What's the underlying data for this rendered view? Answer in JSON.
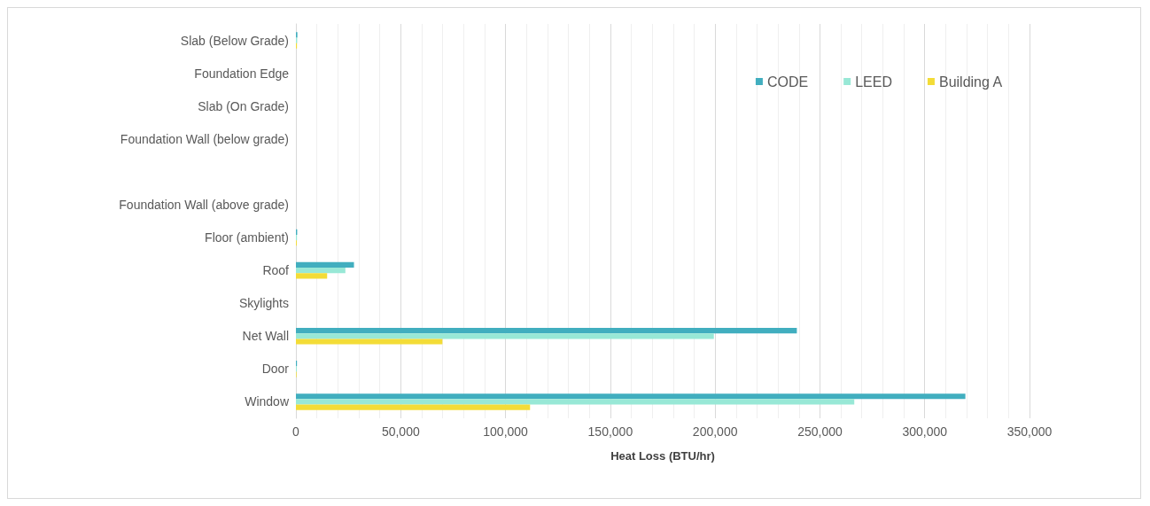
{
  "chart_data": {
    "type": "bar",
    "orientation": "horizontal",
    "xlabel": "Heat Loss (BTU/hr)",
    "categories": [
      "Slab (Below Grade)",
      "Foundation Edge",
      "Slab (On Grade)",
      "Foundation Wall (below grade)",
      null,
      "Foundation Wall (above grade)",
      "Floor (ambient)",
      "Roof",
      "Skylights",
      "Net Wall",
      "Door",
      "Window"
    ],
    "series": [
      {
        "name": "CODE",
        "color": "#41aebf",
        "values": [
          700,
          0,
          0,
          0,
          0,
          0,
          600,
          27700,
          0,
          239000,
          500,
          319400
        ]
      },
      {
        "name": "LEED",
        "color": "#98e8d6",
        "values": [
          600,
          0,
          0,
          0,
          0,
          0,
          500,
          23600,
          0,
          199400,
          400,
          266400
        ]
      },
      {
        "name": "Building A",
        "color": "#f3dc37",
        "values": [
          500,
          0,
          0,
          0,
          0,
          0,
          400,
          14900,
          0,
          69900,
          300,
          111700
        ]
      }
    ],
    "xlim": [
      0,
      350000
    ],
    "xticks": [
      0,
      {
        "value": 10000,
        "label": null
      },
      {
        "value": 20000,
        "label": null
      },
      {
        "value": 30000,
        "label": null
      },
      {
        "value": 40000,
        "label": null
      },
      {
        "value": 50000,
        "label": "50,000"
      },
      {
        "value": 60000,
        "label": null
      },
      {
        "value": 70000,
        "label": null
      },
      {
        "value": 80000,
        "label": null
      },
      {
        "value": 90000,
        "label": null
      },
      {
        "value": 100000,
        "label": "100,000"
      },
      {
        "value": 110000,
        "label": null
      },
      {
        "value": 120000,
        "label": null
      },
      {
        "value": 130000,
        "label": null
      },
      {
        "value": 140000,
        "label": null
      },
      {
        "value": 150000,
        "label": "150,000"
      },
      {
        "value": 160000,
        "label": null
      },
      {
        "value": 170000,
        "label": null
      },
      {
        "value": 180000,
        "label": null
      },
      {
        "value": 190000,
        "label": null
      },
      {
        "value": 200000,
        "label": "200,000"
      },
      {
        "value": 210000,
        "label": null
      },
      {
        "value": 220000,
        "label": null
      },
      {
        "value": 230000,
        "label": null
      },
      {
        "value": 240000,
        "label": null
      },
      {
        "value": 250000,
        "label": "250,000"
      },
      {
        "value": 260000,
        "label": null
      },
      {
        "value": 270000,
        "label": null
      },
      {
        "value": 280000,
        "label": null
      },
      {
        "value": 290000,
        "label": null
      },
      {
        "value": 300000,
        "label": "300,000"
      },
      {
        "value": 310000,
        "label": null
      },
      {
        "value": 320000,
        "label": null
      },
      {
        "value": 330000,
        "label": null
      },
      {
        "value": 340000,
        "label": null
      },
      {
        "value": 350000,
        "label": "350,000"
      }
    ],
    "grid": "x",
    "legend": "top right"
  }
}
